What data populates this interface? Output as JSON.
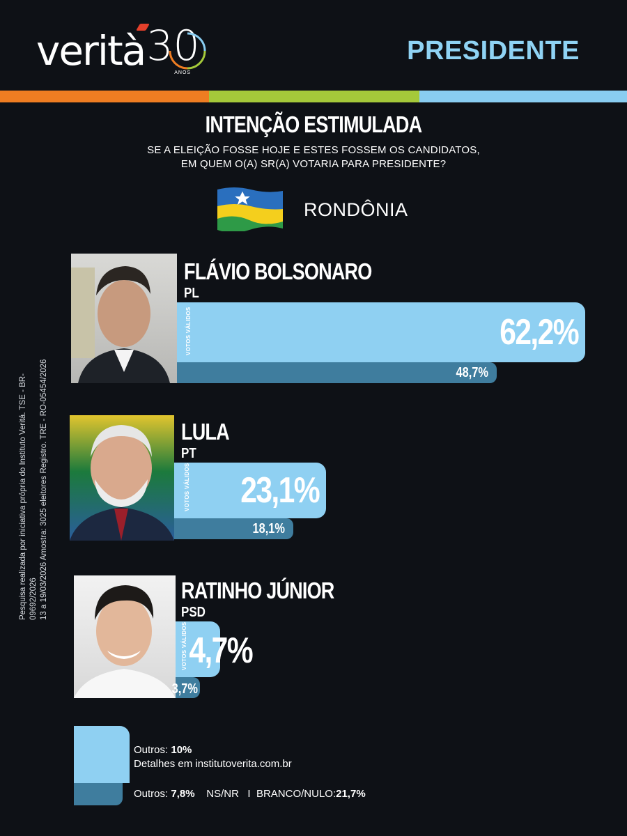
{
  "header": {
    "logo": {
      "wordmark": "verità",
      "anniversary": "30",
      "anos": "ANOS"
    },
    "office_title": "PRESIDENTE"
  },
  "survey": {
    "title": "INTENÇÃO ESTIMULADA",
    "question_line1": "SE A ELEIÇÃO FOSSE HOJE E ESTES FOSSEM OS CANDIDATOS,",
    "question_line2": "EM QUEM O(A) SR(A) VOTARIA PARA PRESIDENTE?",
    "state": "RONDÔNIA",
    "valid_votes_label": "VOTOS VÁLIDOS"
  },
  "colors": {
    "valid_bar": "#8fd0f2",
    "total_bar": "#3f7d9e",
    "stripe": [
      "#ee7d22",
      "#a5c93a",
      "#89cdf1"
    ]
  },
  "chart_data": {
    "type": "bar",
    "orientation": "horizontal",
    "categories": [
      "FLÁVIO BOLSONARO",
      "LULA",
      "RATINHO JÚNIOR"
    ],
    "parties": [
      "PL",
      "PT",
      "PSD"
    ],
    "series": [
      {
        "name": "VOTOS VÁLIDOS",
        "values": [
          62.2,
          23.1,
          4.7
        ],
        "labels": [
          "62,2%",
          "23,1%",
          "4,7%"
        ]
      },
      {
        "values": [
          48.7,
          18.1,
          3.7
        ],
        "labels": [
          "48,7%",
          "18,1%",
          "3,7%"
        ]
      }
    ],
    "ylim": [
      0,
      62.2
    ]
  },
  "others": {
    "valid_label": "Outros: ",
    "valid_value": "10%",
    "details": "Detalhes em institutoverita.com.br",
    "total_label": "Outros: ",
    "total_value": "7,8%",
    "nsnr": "NS/NR",
    "separator": "I",
    "branco_label": "BRANCO/NULO:",
    "branco_value": "21,7%"
  },
  "footnote": {
    "line1": "Pesquisa realizada por iniciativa própria do Instituto Veritá. TSE - BR-09692/2026",
    "line2": "13 a 19/03/2026 Amostra: 3025 eleitores Registro. TRE - RO-05454/2026"
  }
}
